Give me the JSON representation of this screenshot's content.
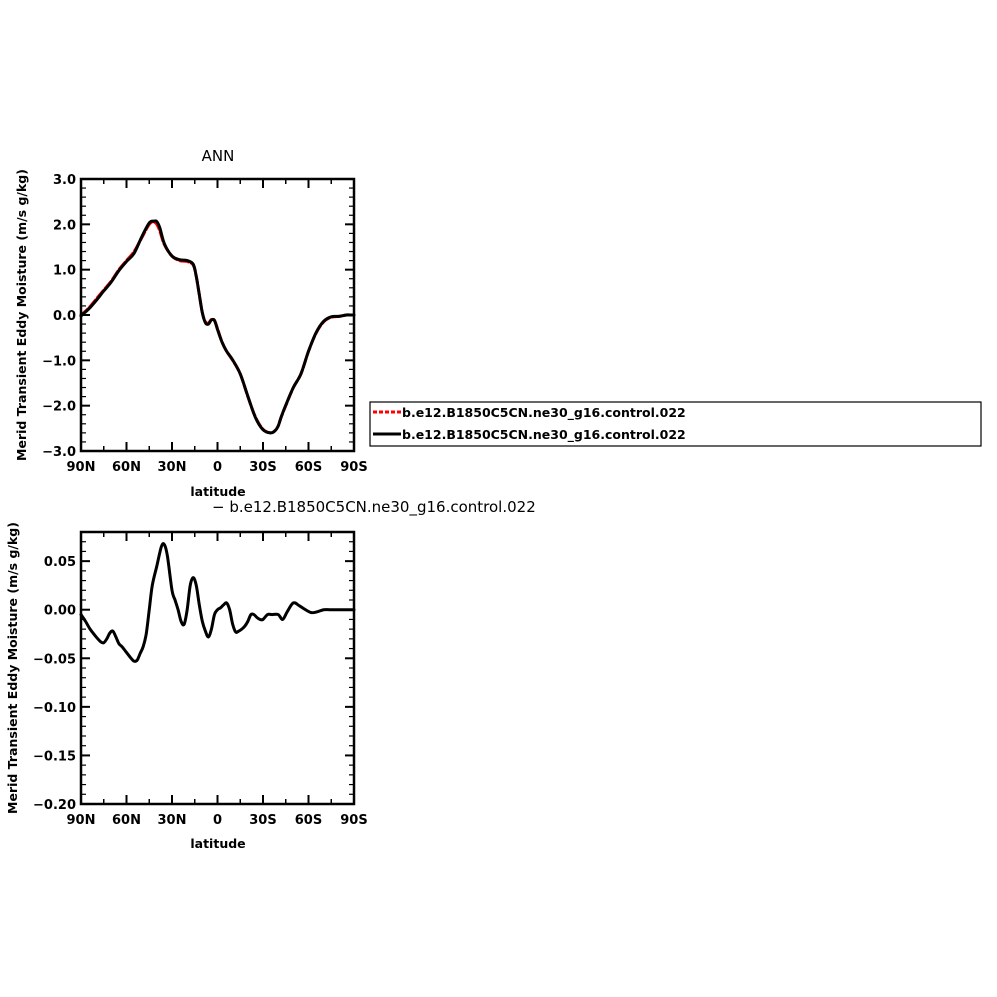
{
  "chart_data": [
    {
      "type": "line",
      "title": "ANN",
      "xlabel": "latitude",
      "ylabel": "Merid Transient Eddy Moisture (m/s g/kg)",
      "xlim": [
        90,
        -90
      ],
      "ylim": [
        -3.0,
        3.0
      ],
      "x_tick_values": [
        90,
        60,
        30,
        0,
        -30,
        -60,
        -90
      ],
      "x_tick_labels": [
        "90N",
        "60N",
        "30N",
        "0",
        "30S",
        "60S",
        "90S"
      ],
      "y_tick_values": [
        -3,
        -2,
        -1,
        0,
        1,
        2,
        3
      ],
      "y_tick_labels": [
        "−3.0",
        "−2.0",
        "−1.0",
        "0.0",
        "1.0",
        "2.0",
        "3.0"
      ],
      "legend": "outside-right",
      "grid": false,
      "series": [
        {
          "name": "b.e12.B1850C5CN.ne30_g16.control.022",
          "color": "#ff0000",
          "style": "dashed",
          "x": [
            90,
            85,
            80,
            75,
            70,
            65,
            60,
            55,
            50,
            45,
            42,
            40,
            38,
            35,
            30,
            25,
            20,
            16,
            14,
            12,
            10,
            8,
            6,
            4,
            2,
            0,
            -3,
            -6,
            -10,
            -15,
            -20,
            -25,
            -30,
            -35,
            -38,
            -40,
            -42,
            -45,
            -50,
            -55,
            -60,
            -65,
            -70,
            -75,
            -80,
            -85,
            -88,
            -90
          ],
          "y": [
            0.0,
            0.15,
            0.35,
            0.55,
            0.75,
            1.0,
            1.2,
            1.4,
            1.7,
            2.0,
            2.05,
            2.0,
            1.85,
            1.55,
            1.3,
            1.2,
            1.18,
            1.1,
            0.85,
            0.45,
            0.05,
            -0.15,
            -0.18,
            -0.1,
            -0.12,
            -0.3,
            -0.6,
            -0.8,
            -1.0,
            -1.3,
            -1.8,
            -2.25,
            -2.52,
            -2.6,
            -2.55,
            -2.45,
            -2.25,
            -2.0,
            -1.6,
            -1.3,
            -0.8,
            -0.4,
            -0.15,
            -0.05,
            -0.03,
            0.0,
            0.0,
            0.0
          ]
        },
        {
          "name": "b.e12.B1850C5CN.ne30_g16.control.022",
          "color": "#000000",
          "style": "solid",
          "x": [
            90,
            85,
            80,
            75,
            70,
            65,
            60,
            55,
            50,
            45,
            42,
            40,
            38,
            35,
            30,
            25,
            20,
            16,
            14,
            12,
            10,
            8,
            6,
            4,
            2,
            0,
            -3,
            -6,
            -10,
            -15,
            -20,
            -25,
            -30,
            -35,
            -38,
            -40,
            -42,
            -45,
            -50,
            -55,
            -60,
            -65,
            -70,
            -75,
            -80,
            -85,
            -88,
            -90
          ],
          "y": [
            -0.02,
            0.13,
            0.32,
            0.53,
            0.73,
            0.98,
            1.18,
            1.36,
            1.72,
            2.03,
            2.07,
            2.06,
            1.92,
            1.57,
            1.3,
            1.22,
            1.2,
            1.12,
            0.85,
            0.45,
            0.05,
            -0.17,
            -0.2,
            -0.11,
            -0.12,
            -0.32,
            -0.6,
            -0.8,
            -0.99,
            -1.3,
            -1.79,
            -2.26,
            -2.53,
            -2.6,
            -2.55,
            -2.45,
            -2.25,
            -1.99,
            -1.6,
            -1.3,
            -0.8,
            -0.39,
            -0.14,
            -0.04,
            -0.03,
            0.0,
            0.0,
            0.0
          ]
        }
      ]
    },
    {
      "type": "line",
      "title": "− b.e12.B1850C5CN.ne30_g16.control.022",
      "xlabel": "latitude",
      "ylabel": "Merid Transient Eddy Moisture (m/s g/kg)",
      "xlim": [
        90,
        -90
      ],
      "ylim": [
        -0.2,
        0.08
      ],
      "x_tick_values": [
        90,
        60,
        30,
        0,
        -30,
        -60,
        -90
      ],
      "x_tick_labels": [
        "90N",
        "60N",
        "30N",
        "0",
        "30S",
        "60S",
        "90S"
      ],
      "y_tick_values": [
        -0.2,
        -0.15,
        -0.1,
        -0.05,
        0.0,
        0.05
      ],
      "y_tick_labels": [
        "−0.20",
        "−0.15",
        "−0.10",
        "−0.05",
        "0.00",
        "0.05"
      ],
      "grid": false,
      "series": [
        {
          "color": "#000000",
          "style": "solid",
          "x": [
            90,
            87,
            84,
            80,
            77,
            75,
            73,
            71,
            69,
            67,
            65,
            63,
            61,
            59,
            57,
            55,
            53,
            51,
            49,
            47,
            45,
            43,
            40,
            37,
            35,
            33,
            30,
            28,
            26,
            24,
            22,
            20,
            18,
            16,
            14,
            12,
            10,
            8,
            6,
            4,
            2,
            0,
            -2,
            -4,
            -6,
            -8,
            -10,
            -12,
            -14,
            -16,
            -18,
            -20,
            -22,
            -24,
            -26,
            -28,
            -30,
            -33,
            -36,
            -40,
            -43,
            -46,
            -50,
            -54,
            -58,
            -62,
            -66,
            -70,
            -74,
            -78,
            -82,
            -86,
            -90
          ],
          "y": [
            -0.005,
            -0.012,
            -0.02,
            -0.028,
            -0.033,
            -0.034,
            -0.03,
            -0.024,
            -0.022,
            -0.028,
            -0.035,
            -0.038,
            -0.042,
            -0.046,
            -0.05,
            -0.053,
            -0.052,
            -0.045,
            -0.038,
            -0.025,
            0.0,
            0.025,
            0.045,
            0.065,
            0.067,
            0.055,
            0.02,
            0.01,
            0.0,
            -0.012,
            -0.015,
            0.0,
            0.025,
            0.033,
            0.025,
            0.005,
            -0.012,
            -0.022,
            -0.028,
            -0.02,
            -0.005,
            0.0,
            0.002,
            0.005,
            0.007,
            0.0,
            -0.015,
            -0.023,
            -0.022,
            -0.02,
            -0.017,
            -0.012,
            -0.005,
            -0.005,
            -0.008,
            -0.01,
            -0.01,
            -0.005,
            -0.005,
            -0.005,
            -0.01,
            -0.002,
            0.007,
            0.004,
            0.0,
            -0.003,
            -0.002,
            0.0,
            0.0,
            0.0,
            0.0,
            0.0,
            0.0
          ]
        }
      ]
    }
  ]
}
